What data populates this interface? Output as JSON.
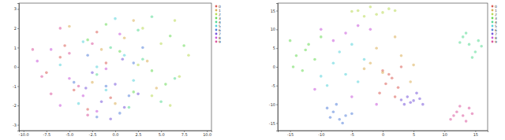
{
  "chart_data": [
    {
      "type": "scatter",
      "legend": "upper right",
      "xlim": [
        -10.5,
        10.5
      ],
      "ylim": [
        -3.3,
        3.3
      ],
      "xticks": [
        {
          "value": -10,
          "label": "-10.0"
        },
        {
          "value": -7.5,
          "label": "-7.5"
        },
        {
          "value": -5,
          "label": "-5.0"
        },
        {
          "value": -2.5,
          "label": "-2.5"
        },
        {
          "value": 0,
          "label": "0.0"
        },
        {
          "value": 2.5,
          "label": "2.5"
        },
        {
          "value": 5,
          "label": "5.0"
        },
        {
          "value": 7.5,
          "label": "7.5"
        },
        {
          "value": 10,
          "label": "10.0"
        }
      ],
      "yticks": [
        -3,
        -2,
        -1,
        0,
        1,
        2,
        3
      ],
      "series": [
        {
          "name": "0",
          "color": "#db5f57",
          "x": [
            -6,
            -4.5,
            -2,
            -7.5,
            -3,
            -1,
            -5.5,
            -0.5
          ],
          "values": [
            0.5,
            -1.2,
            1.8,
            -0.3,
            -2.2,
            0.2,
            1.1,
            -1.6
          ]
        },
        {
          "name": "1",
          "color": "#dbae57",
          "x": [
            1,
            -2.5,
            3.5,
            -5,
            0,
            4.5,
            -1.5,
            2
          ],
          "values": [
            1.5,
            -0.8,
            0.3,
            2.1,
            -1.9,
            -1.1,
            0.9,
            2.4
          ]
        },
        {
          "name": "2",
          "color": "#b9db57",
          "x": [
            5,
            7,
            3,
            6.5,
            8,
            4,
            2.5,
            6
          ],
          "values": [
            1.2,
            -0.5,
            2,
            2.4,
            0.6,
            -1.5,
            0.1,
            -2
          ]
        },
        {
          "name": "3",
          "color": "#69db57",
          "x": [
            4,
            -1,
            6,
            2,
            7.5,
            0.5,
            -3,
            5.5
          ],
          "values": [
            -0.2,
            2.2,
            1.6,
            -1.3,
            1.1,
            0.8,
            1.4,
            -0.9
          ]
        },
        {
          "name": "4",
          "color": "#57db94",
          "x": [
            3,
            1.5,
            5,
            -0.5,
            6.5,
            2.5,
            4,
            -2
          ],
          "values": [
            0.4,
            -2.1,
            -1.8,
            1,
            -0.6,
            1.9,
            2.6,
            -0.4
          ]
        },
        {
          "name": "5",
          "color": "#57d3db",
          "x": [
            -3.5,
            0,
            -6,
            2,
            -1,
            -4,
            1,
            -2
          ],
          "values": [
            1.3,
            2.5,
            0.1,
            -0.7,
            -1.2,
            -1.9,
            0.6,
            0
          ]
        },
        {
          "name": "6",
          "color": "#5784db",
          "x": [
            -1,
            1.5,
            -3,
            0.5,
            3,
            -2,
            -4.5,
            2
          ],
          "values": [
            -1,
            -1.5,
            0.6,
            -2.4,
            1,
            -2.6,
            -0.8,
            0.2
          ]
        },
        {
          "name": "7",
          "color": "#7957db",
          "x": [
            0,
            -1.5,
            1,
            -2.5,
            2.5,
            -0.5,
            0.8,
            -3.2
          ],
          "values": [
            -0.9,
            -1.8,
            -2.1,
            -0.3,
            -1.4,
            -2.7,
            0.4,
            -1.1
          ]
        },
        {
          "name": "8",
          "color": "#c957db",
          "x": [
            -5,
            -2,
            -7,
            -3.5,
            0.5,
            -6,
            -1,
            -8.5
          ],
          "values": [
            -0.6,
            -2.3,
            0.9,
            -1.5,
            1.7,
            -2,
            -0.1,
            0.3
          ]
        },
        {
          "name": "9",
          "color": "#db579e",
          "x": [
            -7,
            -5,
            -8,
            -3,
            -6,
            -4,
            -9,
            -2.5
          ],
          "values": [
            -1.4,
            0.7,
            -0.5,
            -2.5,
            2,
            -1,
            0.9,
            1.2
          ]
        }
      ]
    },
    {
      "type": "scatter",
      "legend": "upper right",
      "xlim": [
        -17,
        17
      ],
      "ylim": [
        -17,
        17
      ],
      "xticks": [
        -15,
        -10,
        -5,
        0,
        5,
        10,
        15
      ],
      "yticks": [
        -15,
        -10,
        -5,
        0,
        5,
        10,
        15
      ],
      "series": [
        {
          "name": "0",
          "color": "#db5f57",
          "x": [
            0,
            1.5,
            2.5,
            -0.5,
            1,
            2,
            0.5,
            3
          ],
          "values": [
            -1,
            -3,
            -5.5,
            -7,
            -2,
            -8,
            -4.5,
            0
          ]
        },
        {
          "name": "1",
          "color": "#dbae57",
          "x": [
            -2,
            3,
            0,
            4.5,
            -1,
            2,
            5,
            -3
          ],
          "values": [
            1,
            3,
            -1.5,
            -4,
            5,
            8,
            0.5,
            -0.5
          ]
        },
        {
          "name": "2",
          "color": "#b9db57",
          "x": [
            -4,
            -2,
            0,
            -3,
            1,
            -1,
            -5,
            2
          ],
          "values": [
            15,
            16,
            14.5,
            13.5,
            15.5,
            14,
            14.8,
            15
          ]
        },
        {
          "name": "3",
          "color": "#69db57",
          "x": [
            -14,
            -12,
            -15,
            -11,
            -13,
            -10,
            -14.5,
            -12.5
          ],
          "values": [
            3,
            6,
            7,
            2,
            -1,
            8,
            0,
            4.5
          ]
        },
        {
          "name": "4",
          "color": "#57db94",
          "x": [
            14,
            15,
            13,
            16,
            14.5,
            12.5,
            15.5,
            13.5
          ],
          "values": [
            6,
            4,
            8,
            5.5,
            2.5,
            6.5,
            7,
            9
          ]
        },
        {
          "name": "5",
          "color": "#57d3db",
          "x": [
            -6,
            -8,
            -4,
            -9,
            -7,
            -3,
            -10,
            -5
          ],
          "values": [
            -2,
            1,
            -4,
            -5,
            4,
            2,
            -2.5,
            6
          ]
        },
        {
          "name": "6",
          "color": "#5784db",
          "x": [
            -8,
            -6,
            -7,
            -9,
            -5,
            -7.5,
            -6.5,
            -8.5
          ],
          "values": [
            -12,
            -13,
            -14,
            -11,
            -12.5,
            -10,
            -15,
            -13.5
          ]
        },
        {
          "name": "7",
          "color": "#7957db",
          "x": [
            4,
            5,
            6,
            3.5,
            5.5,
            4.5,
            6.5,
            3
          ],
          "values": [
            -8,
            -9,
            -8.5,
            -10,
            -7,
            -9.5,
            -10,
            -8.8
          ]
        },
        {
          "name": "8",
          "color": "#c957db",
          "x": [
            -10,
            -6,
            -2,
            -4,
            -8,
            -1,
            -5,
            -11
          ],
          "values": [
            10,
            9,
            10,
            11,
            7,
            -10,
            -8,
            -6
          ]
        },
        {
          "name": "9",
          "color": "#db579e",
          "x": [
            12,
            13,
            14,
            11,
            13.5,
            12.5,
            14.5,
            11.5
          ],
          "values": [
            -12,
            -13,
            -11,
            -14,
            -14.5,
            -10.5,
            -12.5,
            -13
          ]
        }
      ]
    }
  ]
}
